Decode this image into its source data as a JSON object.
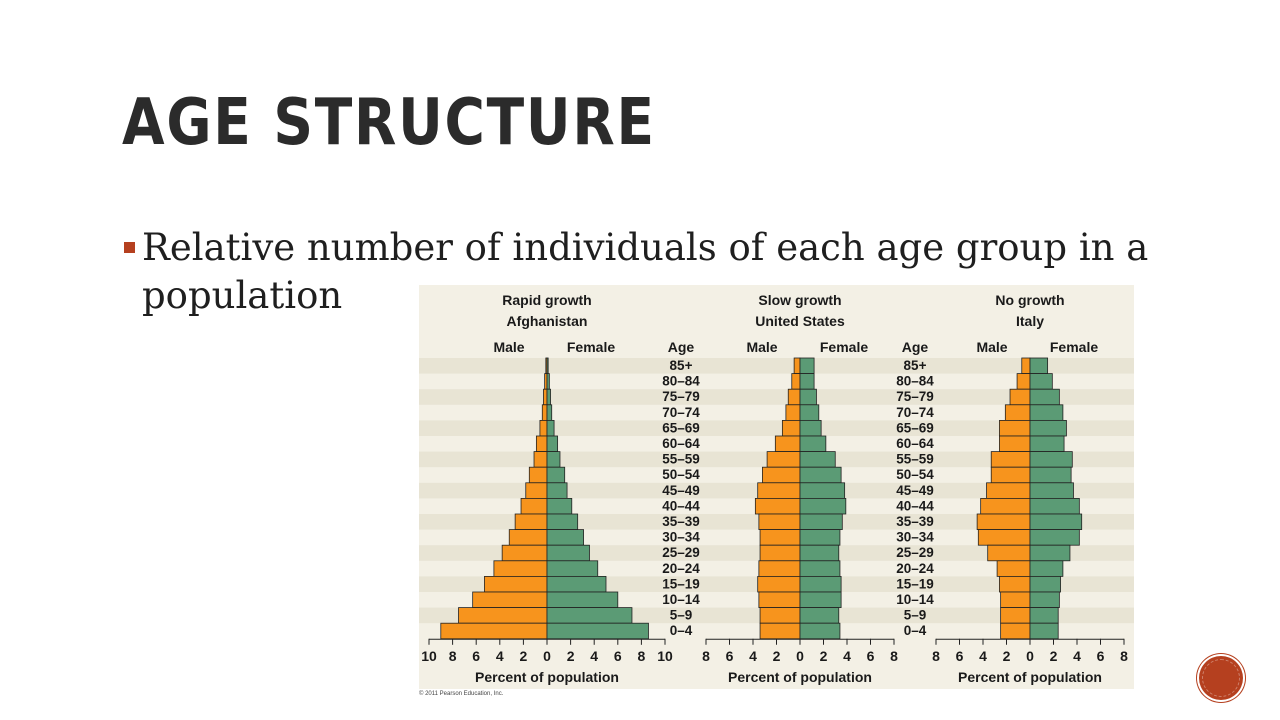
{
  "slide": {
    "title": "Age Structure",
    "bullet": "Relative number of individuals of each age group in a population"
  },
  "colors": {
    "male": "#f7941d",
    "female": "#5b9b75",
    "band": "#e8e4d4",
    "accent": "#b5401f"
  },
  "credit": "© 2011 Pearson Education, Inc.",
  "chart_data": [
    {
      "type": "bar",
      "orientation": "horizontal-pyramid",
      "title": "Rapid growth",
      "subtitle": "Afghanistan",
      "male_label": "Male",
      "female_label": "Female",
      "age_label": "Age",
      "xlabel": "Percent of population",
      "xlim": [
        -10,
        10
      ],
      "ticks": [
        "10",
        "8",
        "6",
        "4",
        "2",
        "0",
        "2",
        "4",
        "6",
        "8",
        "10"
      ],
      "categories": [
        "85+",
        "80–84",
        "75–79",
        "70–74",
        "65–69",
        "60–64",
        "55–59",
        "50–54",
        "45–49",
        "40–44",
        "35–39",
        "30–34",
        "25–29",
        "20–24",
        "15–19",
        "10–14",
        "5–9",
        "0–4"
      ],
      "series": [
        {
          "name": "Male",
          "values": [
            0.1,
            0.2,
            0.3,
            0.4,
            0.6,
            0.9,
            1.1,
            1.5,
            1.8,
            2.2,
            2.7,
            3.2,
            3.8,
            4.5,
            5.3,
            6.3,
            7.5,
            9.0
          ]
        },
        {
          "name": "Female",
          "values": [
            0.1,
            0.2,
            0.3,
            0.4,
            0.6,
            0.9,
            1.1,
            1.5,
            1.7,
            2.1,
            2.6,
            3.1,
            3.6,
            4.3,
            5.0,
            6.0,
            7.2,
            8.6
          ]
        }
      ]
    },
    {
      "type": "bar",
      "orientation": "horizontal-pyramid",
      "title": "Slow growth",
      "subtitle": "United States",
      "male_label": "Male",
      "female_label": "Female",
      "age_label": "Age",
      "xlabel": "Percent of population",
      "xlim": [
        -8,
        8
      ],
      "ticks": [
        "8",
        "6",
        "4",
        "2",
        "0",
        "2",
        "4",
        "6",
        "8"
      ],
      "categories": [
        "85+",
        "80–84",
        "75–79",
        "70–74",
        "65–69",
        "60–64",
        "55–59",
        "50–54",
        "45–49",
        "40–44",
        "35–39",
        "30–34",
        "25–29",
        "20–24",
        "15–19",
        "10–14",
        "5–9",
        "0–4"
      ],
      "series": [
        {
          "name": "Male",
          "values": [
            0.5,
            0.7,
            1.0,
            1.2,
            1.5,
            2.1,
            2.8,
            3.2,
            3.6,
            3.8,
            3.5,
            3.4,
            3.4,
            3.5,
            3.6,
            3.5,
            3.4,
            3.4
          ]
        },
        {
          "name": "Female",
          "values": [
            1.2,
            1.2,
            1.4,
            1.6,
            1.8,
            2.2,
            3.0,
            3.5,
            3.8,
            3.9,
            3.6,
            3.4,
            3.3,
            3.4,
            3.5,
            3.5,
            3.3,
            3.4
          ]
        }
      ]
    },
    {
      "type": "bar",
      "orientation": "horizontal-pyramid",
      "title": "No growth",
      "subtitle": "Italy",
      "male_label": "Male",
      "female_label": "Female",
      "age_label": "Age",
      "xlabel": "Percent of population",
      "xlim": [
        -8,
        8
      ],
      "ticks": [
        "8",
        "6",
        "4",
        "2",
        "0",
        "2",
        "4",
        "6",
        "8"
      ],
      "categories": [
        "85+",
        "80–84",
        "75–79",
        "70–74",
        "65–69",
        "60–64",
        "55–59",
        "50–54",
        "45–49",
        "40–44",
        "35–39",
        "30–34",
        "25–29",
        "20–24",
        "15–19",
        "10–14",
        "5–9",
        "0–4"
      ],
      "series": [
        {
          "name": "Male",
          "values": [
            0.7,
            1.1,
            1.7,
            2.1,
            2.6,
            2.6,
            3.3,
            3.3,
            3.7,
            4.2,
            4.5,
            4.4,
            3.6,
            2.8,
            2.6,
            2.5,
            2.5,
            2.5
          ]
        },
        {
          "name": "Female",
          "values": [
            1.5,
            1.9,
            2.5,
            2.8,
            3.1,
            2.9,
            3.6,
            3.5,
            3.7,
            4.2,
            4.4,
            4.2,
            3.4,
            2.8,
            2.6,
            2.5,
            2.4,
            2.4
          ]
        }
      ]
    }
  ]
}
